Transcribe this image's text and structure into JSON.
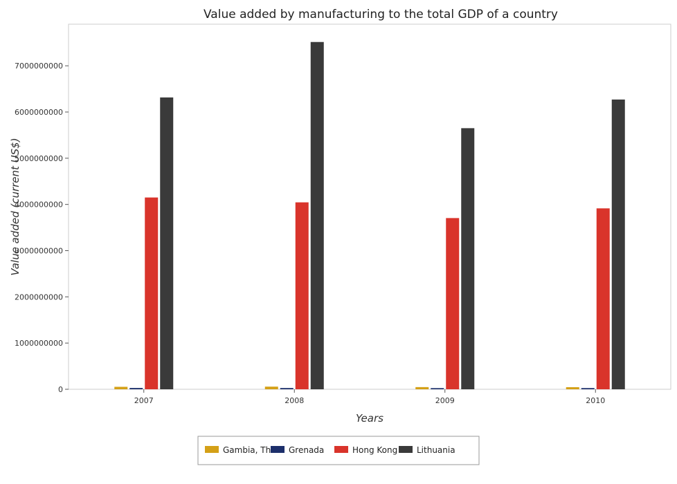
{
  "chart_data": {
    "type": "bar",
    "title": "Value added by manufacturing to the total GDP of a country",
    "xlabel": "Years",
    "ylabel": "Value added (current US$)",
    "categories": [
      "2007",
      "2008",
      "2009",
      "2010"
    ],
    "ylim": [
      0,
      7900000000
    ],
    "yticks": [
      0,
      1000000000,
      2000000000,
      3000000000,
      4000000000,
      5000000000,
      6000000000,
      7000000000
    ],
    "ytick_labels": [
      "0",
      "1000000000",
      "2000000000",
      "3000000000",
      "4000000000",
      "5000000000",
      "6000000000",
      "7000000000"
    ],
    "legend_position": "bottom",
    "grid": false,
    "series": [
      {
        "name": "Gambia, The",
        "color": "#d4a017",
        "values": [
          53000000,
          57000000,
          47000000,
          45000000
        ]
      },
      {
        "name": "Grenada",
        "color": "#1c2f6b",
        "values": [
          28000000,
          27000000,
          25000000,
          26000000
        ]
      },
      {
        "name": "Hong Kong",
        "color": "#d9342b",
        "values": [
          4150000000,
          4045000000,
          3705000000,
          3915000000
        ]
      },
      {
        "name": "Lithuania",
        "color": "#3a3a3a",
        "values": [
          6315000000,
          7515000000,
          5650000000,
          6270000000
        ]
      }
    ]
  }
}
